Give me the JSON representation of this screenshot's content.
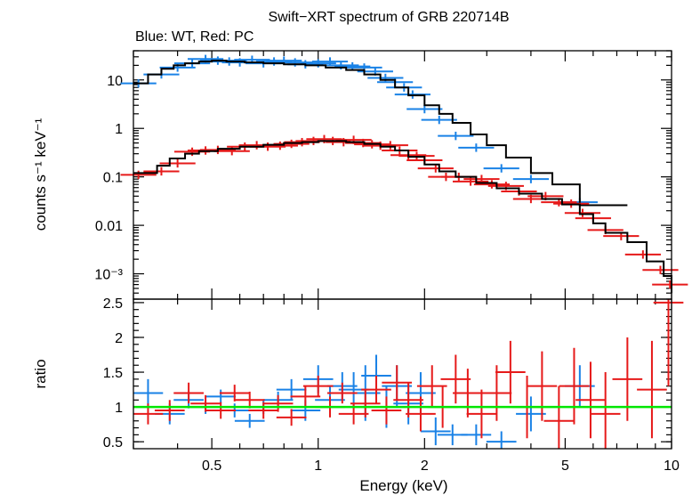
{
  "chart_data": [
    {
      "type": "line",
      "title": "Swift−XRT spectrum of GRB 220714B",
      "subtitle": "Blue: WT, Red: PC",
      "xlabel": "",
      "ylabel": "counts s⁻¹ keV⁻¹",
      "xscale": "log",
      "yscale": "log",
      "xlim": [
        0.3,
        10
      ],
      "ylim": [
        0.0003,
        40
      ],
      "yticks": [
        {
          "value": 10,
          "label": "10"
        },
        {
          "value": 1,
          "label": "1"
        },
        {
          "value": 0.1,
          "label": "0.1"
        },
        {
          "value": 0.01,
          "label": "0.01"
        },
        {
          "value": 0.001,
          "label": "10⁻³"
        }
      ],
      "series": [
        {
          "name": "WT data",
          "color": "#1a82e6",
          "style": "crosses",
          "x": [
            0.31,
            0.36,
            0.4,
            0.44,
            0.48,
            0.52,
            0.56,
            0.6,
            0.65,
            0.7,
            0.75,
            0.8,
            0.86,
            0.92,
            1.0,
            1.08,
            1.16,
            1.25,
            1.35,
            1.45,
            1.55,
            1.65,
            1.75,
            1.85,
            2.0,
            2.2,
            2.45,
            2.8,
            3.3,
            4.0,
            5.5
          ],
          "y": [
            8.5,
            13,
            18,
            22,
            27,
            25,
            24,
            23,
            26,
            22,
            24,
            25,
            23,
            21,
            22,
            24,
            20,
            19,
            18,
            15,
            11,
            9,
            7,
            5,
            2.5,
            1.5,
            0.7,
            0.4,
            0.15,
            0.09,
            0.03
          ]
        },
        {
          "name": "WT model",
          "color": "#000000",
          "style": "step",
          "x": [
            0.3,
            0.33,
            0.36,
            0.39,
            0.42,
            0.46,
            0.5,
            0.55,
            0.62,
            0.7,
            0.8,
            0.92,
            1.05,
            1.2,
            1.35,
            1.5,
            1.65,
            1.8,
            2.0,
            2.2,
            2.4,
            2.7,
            3.0,
            3.4,
            4.0,
            4.6,
            5.5,
            7.5
          ],
          "y": [
            8.5,
            13,
            17,
            20,
            22,
            24,
            25,
            24,
            23,
            22,
            21,
            20,
            18,
            16,
            13,
            10,
            7,
            4.8,
            3,
            2,
            1.3,
            0.75,
            0.45,
            0.25,
            0.12,
            0.07,
            0.026,
            0.026
          ]
        },
        {
          "name": "PC data",
          "color": "#e61a1a",
          "style": "crosses",
          "x": [
            0.31,
            0.36,
            0.4,
            0.44,
            0.48,
            0.52,
            0.57,
            0.62,
            0.67,
            0.72,
            0.78,
            0.84,
            0.9,
            0.97,
            1.04,
            1.1,
            1.18,
            1.26,
            1.34,
            1.42,
            1.5,
            1.6,
            1.7,
            1.8,
            1.9,
            2.0,
            2.15,
            2.3,
            2.5,
            2.7,
            2.9,
            3.1,
            3.4,
            3.7,
            4.0,
            4.4,
            4.8,
            5.2,
            5.6,
            6.0,
            6.5,
            7.2,
            8.3,
            9.3,
            9.9
          ],
          "y": [
            0.11,
            0.13,
            0.19,
            0.33,
            0.35,
            0.36,
            0.34,
            0.42,
            0.45,
            0.42,
            0.44,
            0.48,
            0.52,
            0.55,
            0.6,
            0.55,
            0.52,
            0.58,
            0.5,
            0.47,
            0.44,
            0.45,
            0.35,
            0.28,
            0.27,
            0.22,
            0.15,
            0.1,
            0.1,
            0.08,
            0.09,
            0.07,
            0.065,
            0.05,
            0.035,
            0.04,
            0.03,
            0.028,
            0.018,
            0.014,
            0.008,
            0.006,
            0.0025,
            0.0012,
            0.0006
          ]
        },
        {
          "name": "PC model",
          "color": "#000000",
          "style": "step",
          "x": [
            0.3,
            0.35,
            0.38,
            0.42,
            0.46,
            0.52,
            0.6,
            0.7,
            0.8,
            0.9,
            1.0,
            1.1,
            1.2,
            1.35,
            1.5,
            1.65,
            1.8,
            2.0,
            2.2,
            2.45,
            2.8,
            3.2,
            3.7,
            4.3,
            4.9,
            5.5,
            6.0,
            6.5,
            7.5,
            8.5,
            9.5,
            10
          ],
          "y": [
            0.12,
            0.17,
            0.24,
            0.3,
            0.34,
            0.38,
            0.42,
            0.46,
            0.5,
            0.52,
            0.55,
            0.55,
            0.52,
            0.48,
            0.42,
            0.35,
            0.26,
            0.18,
            0.13,
            0.1,
            0.075,
            0.058,
            0.045,
            0.035,
            0.027,
            0.017,
            0.011,
            0.007,
            0.0045,
            0.0018,
            0.0009,
            0.0004
          ]
        }
      ]
    },
    {
      "type": "scatter",
      "xlabel": "Energy (keV)",
      "ylabel": "ratio",
      "xscale": "log",
      "xlim": [
        0.3,
        10
      ],
      "ylim": [
        0.4,
        2.55
      ],
      "xticks": [
        {
          "value": 0.5,
          "label": "0.5"
        },
        {
          "value": 1,
          "label": "1"
        },
        {
          "value": 2,
          "label": "2"
        },
        {
          "value": 5,
          "label": "5"
        },
        {
          "value": 10,
          "label": "10"
        }
      ],
      "yticks": [
        {
          "value": 0.5,
          "label": "0.5"
        },
        {
          "value": 1,
          "label": "1"
        },
        {
          "value": 1.5,
          "label": "1.5"
        },
        {
          "value": 2,
          "label": "2"
        },
        {
          "value": 2.5,
          "label": "2.5"
        }
      ],
      "reference_line": {
        "value": 1,
        "color": "#00e600"
      },
      "series": [
        {
          "name": "WT ratio",
          "color": "#1a82e6",
          "x": [
            0.33,
            0.38,
            0.43,
            0.48,
            0.53,
            0.58,
            0.64,
            0.7,
            0.77,
            0.84,
            0.92,
            1.0,
            1.08,
            1.17,
            1.26,
            1.36,
            1.46,
            1.56,
            1.67,
            1.8,
            1.95,
            2.15,
            2.4,
            2.8,
            3.3,
            4.0,
            5.5
          ],
          "y": [
            1.2,
            0.9,
            1.1,
            1.0,
            1.15,
            0.95,
            0.8,
            1.0,
            1.1,
            1.25,
            0.95,
            1.4,
            1.1,
            1.3,
            1.25,
            1.2,
            1.45,
            1.0,
            1.3,
            1.05,
            1.2,
            0.65,
            0.6,
            0.6,
            0.5,
            0.9,
            1.3
          ],
          "yerr": [
            0.2,
            0.15,
            0.12,
            0.1,
            0.1,
            0.1,
            0.1,
            0.1,
            0.12,
            0.15,
            0.15,
            0.2,
            0.2,
            0.2,
            0.25,
            0.4,
            0.3,
            0.3,
            0.3,
            0.3,
            0.3,
            0.2,
            0.15,
            0.15,
            0.15,
            0.25,
            0.3
          ]
        },
        {
          "name": "PC ratio",
          "color": "#e61a1a",
          "x": [
            0.33,
            0.38,
            0.43,
            0.48,
            0.53,
            0.58,
            0.64,
            0.7,
            0.77,
            0.84,
            0.92,
            1.0,
            1.08,
            1.17,
            1.26,
            1.36,
            1.46,
            1.56,
            1.67,
            1.8,
            1.95,
            2.1,
            2.25,
            2.45,
            2.65,
            2.9,
            3.2,
            3.5,
            3.9,
            4.3,
            4.8,
            5.3,
            5.9,
            6.5,
            7.5,
            8.8,
            9.8
          ],
          "y": [
            0.9,
            0.95,
            1.2,
            1.05,
            0.95,
            1.2,
            1.1,
            0.95,
            1.05,
            0.85,
            1.15,
            1.3,
            1.0,
            1.2,
            0.9,
            1.05,
            1.25,
            0.95,
            1.35,
            1.1,
            0.9,
            1.3,
            1.0,
            1.4,
            1.2,
            0.9,
            1.2,
            1.5,
            1.0,
            1.3,
            0.8,
            1.3,
            1.1,
            0.9,
            1.4,
            1.25,
            2.5
          ],
          "yerr": [
            0.15,
            0.15,
            0.15,
            0.12,
            0.12,
            0.12,
            0.12,
            0.12,
            0.12,
            0.12,
            0.15,
            0.15,
            0.15,
            0.15,
            0.15,
            0.2,
            0.2,
            0.2,
            0.25,
            0.25,
            0.25,
            0.3,
            0.3,
            0.35,
            0.35,
            0.35,
            0.4,
            0.45,
            0.45,
            0.5,
            0.5,
            0.55,
            0.55,
            0.6,
            0.6,
            0.7,
            1.2
          ]
        }
      ]
    }
  ]
}
